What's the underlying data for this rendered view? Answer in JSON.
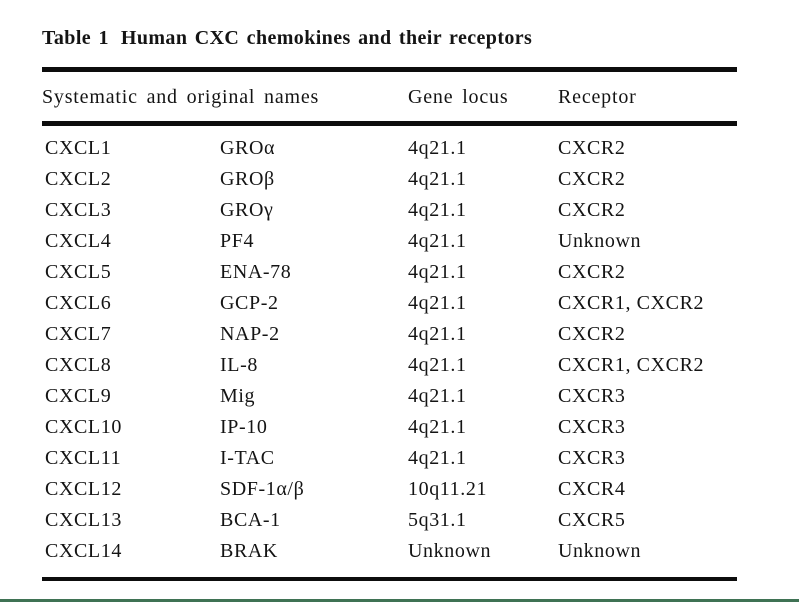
{
  "page": {
    "background": "#ffffff",
    "text_color": "#141414",
    "rule_color": "#0d0d0d",
    "bottom_divider_color": "#3f7254"
  },
  "table": {
    "label": "Table 1",
    "caption": "Human CXC chemokines and their receptors",
    "headers": [
      "Systematic and original names",
      "Gene locus",
      "Receptor"
    ],
    "rows": [
      {
        "systematic": "CXCL1",
        "original": "GROα",
        "locus": "4q21.1",
        "receptor": "CXCR2"
      },
      {
        "systematic": "CXCL2",
        "original": "GROβ",
        "locus": "4q21.1",
        "receptor": "CXCR2"
      },
      {
        "systematic": "CXCL3",
        "original": "GROγ",
        "locus": "4q21.1",
        "receptor": "CXCR2"
      },
      {
        "systematic": "CXCL4",
        "original": "PF4",
        "locus": "4q21.1",
        "receptor": "Unknown"
      },
      {
        "systematic": "CXCL5",
        "original": "ENA-78",
        "locus": "4q21.1",
        "receptor": "CXCR2"
      },
      {
        "systematic": "CXCL6",
        "original": "GCP-2",
        "locus": "4q21.1",
        "receptor": "CXCR1, CXCR2"
      },
      {
        "systematic": "CXCL7",
        "original": "NAP-2",
        "locus": "4q21.1",
        "receptor": "CXCR2"
      },
      {
        "systematic": "CXCL8",
        "original": "IL-8",
        "locus": "4q21.1",
        "receptor": "CXCR1, CXCR2"
      },
      {
        "systematic": "CXCL9",
        "original": "Mig",
        "locus": "4q21.1",
        "receptor": "CXCR3"
      },
      {
        "systematic": "CXCL10",
        "original": "IP-10",
        "locus": "4q21.1",
        "receptor": "CXCR3"
      },
      {
        "systematic": "CXCL11",
        "original": "I-TAC",
        "locus": "4q21.1",
        "receptor": "CXCR3"
      },
      {
        "systematic": "CXCL12",
        "original": "SDF-1α/β",
        "locus": "10q11.21",
        "receptor": "CXCR4"
      },
      {
        "systematic": "CXCL13",
        "original": "BCA-1",
        "locus": "5q31.1",
        "receptor": "CXCR5"
      },
      {
        "systematic": "CXCL14",
        "original": "BRAK",
        "locus": "Unknown",
        "receptor": "Unknown"
      }
    ]
  }
}
